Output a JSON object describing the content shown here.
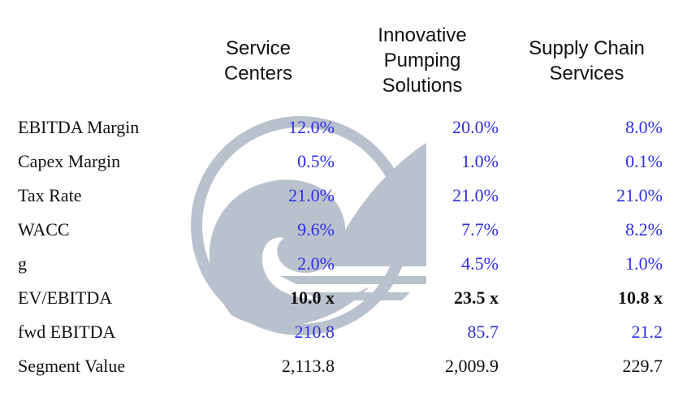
{
  "columns": [
    {
      "header": "Service\nCenters"
    },
    {
      "header": "Innovative\nPumping\nSolutions"
    },
    {
      "header": "Supply Chain\nServices"
    }
  ],
  "rows": [
    {
      "label": "EBITDA Margin",
      "values": [
        "12.0%",
        "20.0%",
        "8.0%"
      ],
      "style": "input"
    },
    {
      "label": "Capex Margin",
      "values": [
        "0.5%",
        "1.0%",
        "0.1%"
      ],
      "style": "input"
    },
    {
      "label": "Tax Rate",
      "values": [
        "21.0%",
        "21.0%",
        "21.0%"
      ],
      "style": "input"
    },
    {
      "label": "WACC",
      "values": [
        "9.6%",
        "7.7%",
        "8.2%"
      ],
      "style": "input"
    },
    {
      "label": "g",
      "values": [
        "2.0%",
        "4.5%",
        "1.0%"
      ],
      "style": "input"
    },
    {
      "label": "EV/EBITDA",
      "values": [
        "10.0 x",
        "23.5 x",
        "10.8 x"
      ],
      "style": "bold"
    },
    {
      "label": "fwd EBITDA",
      "values": [
        "210.8",
        "85.7",
        "21.2"
      ],
      "style": "input"
    },
    {
      "label": "Segment Value",
      "values": [
        "2,113.8",
        "2,009.9",
        "229.7"
      ],
      "style": "output"
    }
  ],
  "colors": {
    "input": "#2f2fe6",
    "text": "#111111",
    "watermark": "#b9c2cc"
  },
  "watermark_icon": "wave-sail-logo-icon"
}
